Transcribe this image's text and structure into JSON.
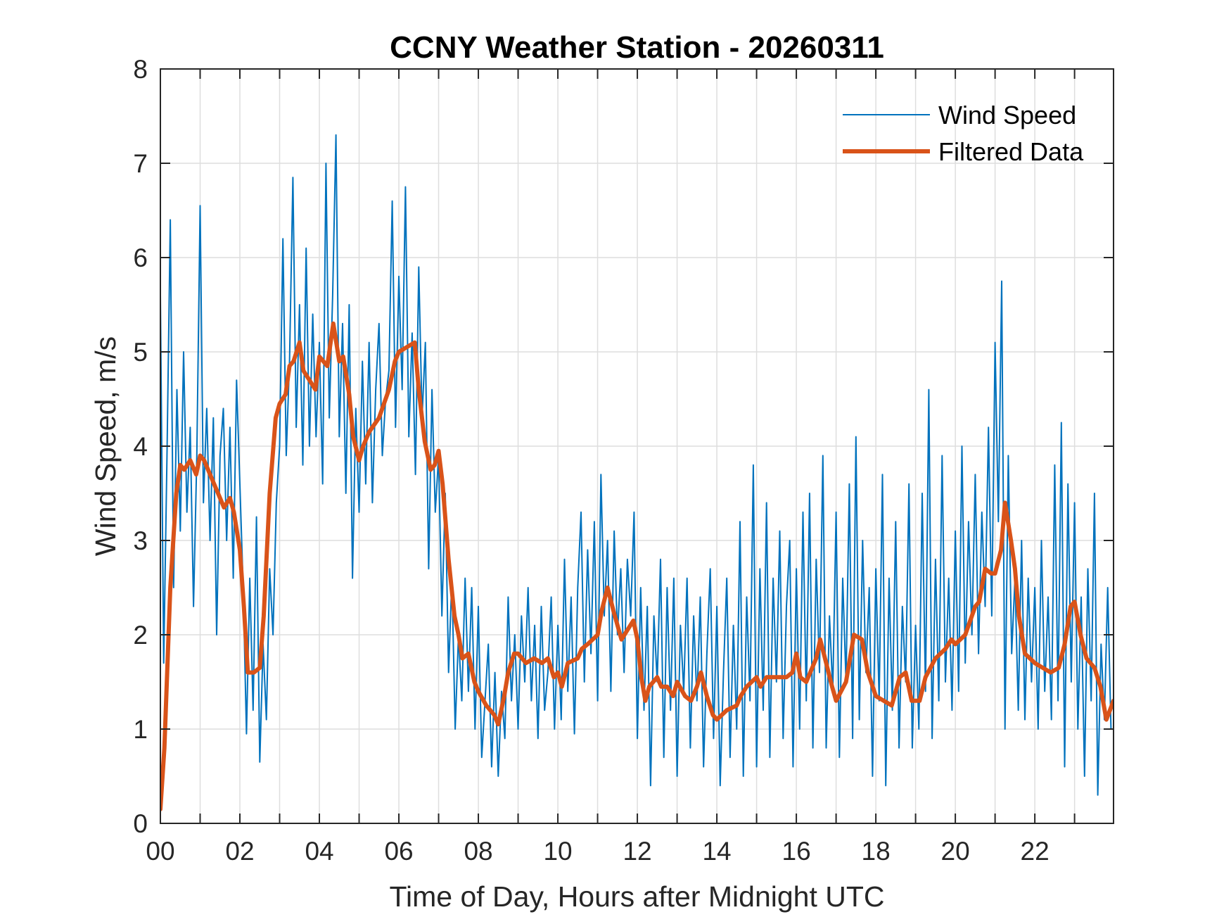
{
  "chart_data": {
    "type": "line",
    "title": "CCNY Weather Station - 20260311",
    "xlabel": "Time of Day, Hours after Midnight UTC",
    "ylabel": "Wind Speed, m/s",
    "xlim": [
      0,
      23.98
    ],
    "ylim": [
      0,
      8
    ],
    "grid": true,
    "legend_position": "top-right",
    "x_ticks": [
      0,
      2,
      4,
      6,
      8,
      10,
      12,
      14,
      16,
      18,
      20,
      22
    ],
    "x_tick_labels": [
      "00",
      "02",
      "04",
      "06",
      "08",
      "10",
      "12",
      "14",
      "16",
      "18",
      "20",
      "22"
    ],
    "x_minor_ticks_hours": 1,
    "y_ticks": [
      0,
      1,
      2,
      3,
      4,
      5,
      6,
      7,
      8
    ],
    "y_tick_labels": [
      "0",
      "1",
      "2",
      "3",
      "4",
      "5",
      "6",
      "7",
      "8"
    ],
    "series": [
      {
        "name": "Wind Speed",
        "color": "#0072BD",
        "x_start_hours": 0,
        "x_step_hours": 0.0833333,
        "values": [
          5.6,
          1.7,
          3.9,
          6.4,
          2.5,
          4.6,
          3.1,
          5.0,
          3.3,
          4.2,
          2.3,
          3.9,
          6.55,
          3.4,
          4.4,
          3.0,
          4.3,
          2.0,
          3.9,
          4.4,
          3.0,
          4.2,
          2.6,
          4.7,
          3.6,
          2.5,
          0.95,
          2.6,
          1.2,
          3.25,
          0.65,
          1.9,
          1.1,
          2.7,
          2.0,
          3.4,
          4.0,
          6.2,
          3.9,
          4.9,
          6.85,
          4.2,
          5.5,
          3.8,
          6.1,
          4.0,
          5.4,
          4.1,
          5.1,
          3.6,
          7.0,
          4.3,
          5.6,
          7.3,
          4.1,
          5.3,
          3.5,
          5.5,
          2.6,
          4.4,
          3.3,
          4.9,
          3.6,
          5.1,
          3.4,
          4.6,
          5.3,
          3.9,
          4.5,
          4.8,
          6.6,
          4.2,
          5.8,
          4.6,
          6.75,
          4.1,
          5.2,
          3.7,
          5.9,
          4.3,
          5.1,
          2.7,
          4.6,
          3.3,
          3.9,
          2.2,
          3.5,
          1.6,
          2.6,
          1.0,
          2.0,
          1.3,
          2.6,
          1.4,
          2.5,
          1.0,
          2.3,
          0.7,
          1.3,
          1.9,
          0.6,
          1.6,
          0.5,
          1.4,
          0.9,
          2.4,
          1.3,
          2.0,
          1.0,
          2.2,
          1.5,
          2.5,
          1.3,
          2.1,
          0.9,
          2.3,
          1.2,
          1.6,
          2.4,
          1.0,
          2.1,
          1.1,
          2.8,
          1.4,
          2.4,
          0.95,
          2.5,
          3.3,
          1.5,
          2.9,
          1.8,
          3.2,
          1.3,
          3.7,
          2.2,
          3.0,
          1.4,
          3.1,
          2.0,
          2.7,
          1.6,
          2.8,
          2.2,
          3.3,
          0.9,
          2.5,
          1.2,
          2.3,
          0.4,
          2.2,
          1.5,
          2.8,
          0.7,
          2.5,
          1.2,
          2.6,
          0.5,
          2.1,
          1.4,
          2.6,
          0.8,
          2.2,
          1.3,
          2.4,
          0.6,
          1.8,
          2.7,
          0.9,
          2.3,
          0.4,
          1.6,
          2.6,
          0.7,
          2.1,
          1.0,
          3.2,
          0.5,
          2.4,
          1.3,
          3.8,
          0.6,
          2.7,
          1.2,
          3.4,
          0.7,
          2.6,
          1.5,
          3.1,
          0.9,
          2.3,
          3.0,
          0.6,
          2.7,
          1.0,
          3.3,
          1.3,
          3.5,
          0.8,
          2.8,
          1.6,
          3.9,
          0.8,
          2.2,
          1.4,
          3.3,
          0.7,
          2.6,
          1.5,
          3.6,
          0.9,
          4.1,
          1.1,
          3.0,
          1.6,
          2.5,
          0.5,
          2.7,
          1.3,
          3.7,
          0.4,
          2.6,
          1.2,
          3.2,
          0.8,
          2.3,
          1.5,
          3.6,
          0.8,
          2.1,
          1.0,
          3.5,
          1.4,
          4.6,
          0.9,
          2.8,
          1.3,
          3.9,
          1.5,
          2.6,
          1.2,
          3.1,
          1.4,
          4.0,
          1.7,
          3.2,
          2.0,
          3.7,
          1.8,
          3.3,
          2.3,
          4.2,
          2.2,
          5.1,
          3.2,
          5.75,
          1.0,
          3.9,
          1.8,
          2.6,
          1.2,
          3.0,
          1.1,
          2.6,
          1.5,
          2.5,
          1.0,
          3.0,
          1.4,
          2.4,
          1.1,
          3.8,
          1.3,
          4.25,
          0.6,
          3.6,
          1.5,
          3.4,
          1.0,
          2.4,
          0.5,
          2.7,
          1.3,
          3.5,
          0.3,
          1.9,
          1.1,
          2.5,
          1.0
        ]
      },
      {
        "name": "Filtered Data",
        "color": "#D95319",
        "x": [
          0.0,
          0.1,
          0.25,
          0.4,
          0.5,
          0.6,
          0.75,
          0.9,
          1.0,
          1.1,
          1.25,
          1.5,
          1.6,
          1.75,
          1.85,
          2.0,
          2.1,
          2.2,
          2.35,
          2.5,
          2.6,
          2.75,
          2.9,
          3.0,
          3.15,
          3.25,
          3.35,
          3.5,
          3.6,
          3.75,
          3.9,
          4.0,
          4.2,
          4.35,
          4.5,
          4.6,
          4.75,
          4.85,
          5.0,
          5.1,
          5.25,
          5.5,
          5.75,
          5.9,
          6.0,
          6.2,
          6.4,
          6.5,
          6.65,
          6.8,
          6.9,
          7.0,
          7.1,
          7.25,
          7.4,
          7.5,
          7.6,
          7.75,
          7.9,
          8.0,
          8.2,
          8.4,
          8.5,
          8.65,
          8.75,
          8.9,
          9.0,
          9.2,
          9.4,
          9.6,
          9.75,
          9.9,
          10.0,
          10.1,
          10.25,
          10.5,
          10.6,
          10.75,
          11.0,
          11.1,
          11.25,
          11.4,
          11.6,
          11.75,
          11.9,
          12.0,
          12.1,
          12.2,
          12.3,
          12.5,
          12.6,
          12.75,
          12.9,
          13.0,
          13.2,
          13.35,
          13.5,
          13.6,
          13.75,
          13.9,
          14.0,
          14.25,
          14.5,
          14.6,
          14.75,
          15.0,
          15.1,
          15.25,
          15.5,
          15.75,
          15.9,
          16.0,
          16.1,
          16.25,
          16.5,
          16.6,
          16.75,
          16.9,
          17.0,
          17.25,
          17.45,
          17.65,
          17.8,
          18.0,
          18.2,
          18.4,
          18.6,
          18.75,
          18.9,
          19.1,
          19.25,
          19.5,
          19.75,
          19.9,
          20.0,
          20.25,
          20.5,
          20.6,
          20.75,
          20.9,
          21.0,
          21.15,
          21.25,
          21.4,
          21.5,
          21.6,
          21.75,
          22.0,
          22.2,
          22.4,
          22.6,
          22.75,
          22.9,
          23.0,
          23.15,
          23.3,
          23.5,
          23.65,
          23.8,
          23.98
        ],
        "values": [
          0.15,
          0.8,
          2.5,
          3.5,
          3.8,
          3.75,
          3.85,
          3.7,
          3.9,
          3.85,
          3.7,
          3.45,
          3.35,
          3.45,
          3.3,
          2.9,
          2.3,
          1.6,
          1.6,
          1.65,
          2.2,
          3.5,
          4.3,
          4.45,
          4.55,
          4.85,
          4.9,
          5.1,
          4.8,
          4.7,
          4.6,
          4.95,
          4.85,
          5.3,
          4.9,
          4.95,
          4.55,
          4.1,
          3.85,
          4.0,
          4.15,
          4.3,
          4.6,
          4.9,
          5.0,
          5.05,
          5.1,
          4.6,
          4.05,
          3.75,
          3.8,
          3.95,
          3.6,
          2.8,
          2.2,
          2.0,
          1.75,
          1.8,
          1.5,
          1.4,
          1.25,
          1.15,
          1.05,
          1.35,
          1.6,
          1.8,
          1.8,
          1.7,
          1.75,
          1.7,
          1.75,
          1.55,
          1.6,
          1.45,
          1.7,
          1.75,
          1.85,
          1.9,
          2.0,
          2.25,
          2.5,
          2.25,
          1.95,
          2.05,
          2.15,
          1.95,
          1.55,
          1.3,
          1.45,
          1.55,
          1.45,
          1.45,
          1.35,
          1.5,
          1.35,
          1.3,
          1.45,
          1.6,
          1.35,
          1.15,
          1.1,
          1.2,
          1.25,
          1.35,
          1.45,
          1.55,
          1.45,
          1.55,
          1.55,
          1.55,
          1.6,
          1.8,
          1.55,
          1.5,
          1.75,
          1.95,
          1.7,
          1.45,
          1.3,
          1.5,
          2.0,
          1.95,
          1.6,
          1.35,
          1.3,
          1.25,
          1.55,
          1.6,
          1.3,
          1.3,
          1.55,
          1.75,
          1.85,
          1.95,
          1.9,
          2.0,
          2.3,
          2.35,
          2.7,
          2.65,
          2.65,
          2.9,
          3.4,
          3.0,
          2.7,
          2.2,
          1.8,
          1.7,
          1.65,
          1.6,
          1.65,
          1.9,
          2.3,
          2.35,
          2.0,
          1.75,
          1.65,
          1.45,
          1.1,
          1.3
        ]
      }
    ]
  }
}
